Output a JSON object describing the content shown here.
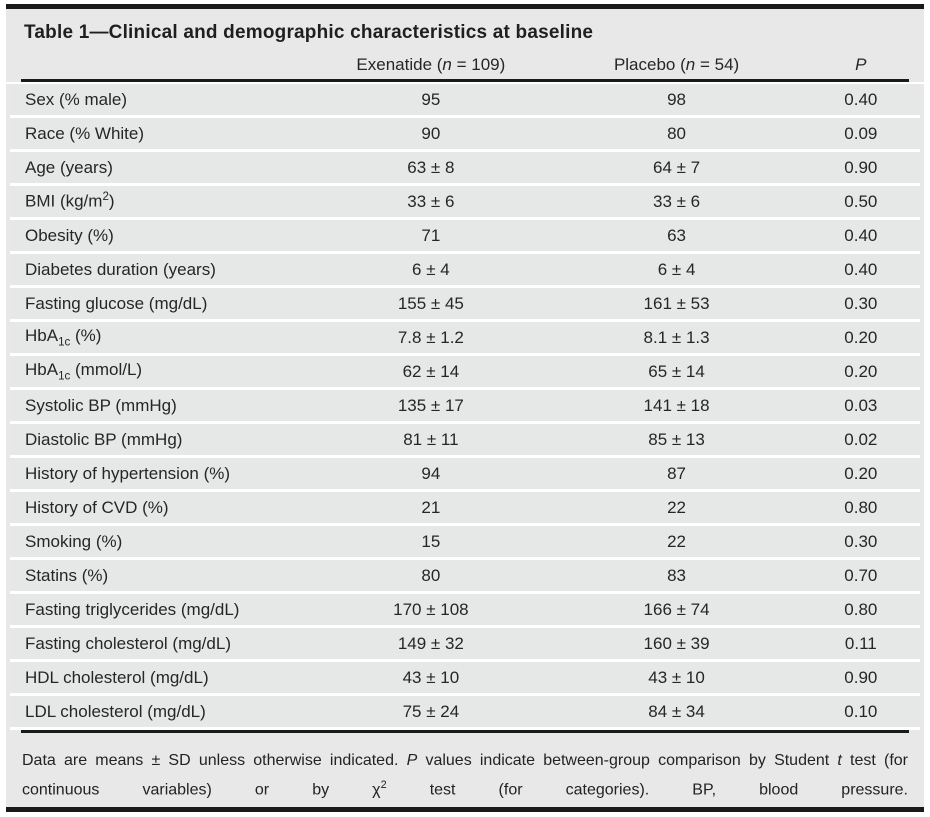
{
  "table": {
    "title": "Table 1—Clinical and demographic characteristics at baseline",
    "columns": {
      "label": "",
      "group1": [
        {
          "t": "Exenatide ("
        },
        {
          "t": "n",
          "style": "i"
        },
        {
          "t": " = 109)"
        }
      ],
      "group2": [
        {
          "t": "Placebo ("
        },
        {
          "t": "n",
          "style": "i"
        },
        {
          "t": " = 54)"
        }
      ],
      "p": [
        {
          "t": "P",
          "style": "i"
        }
      ]
    },
    "rows": [
      {
        "label": [
          {
            "t": "Sex (% male)"
          }
        ],
        "exenatide": "95",
        "placebo": "98",
        "p": "0.40"
      },
      {
        "label": [
          {
            "t": "Race (% White)"
          }
        ],
        "exenatide": "90",
        "placebo": "80",
        "p": "0.09"
      },
      {
        "label": [
          {
            "t": "Age (years)"
          }
        ],
        "exenatide": "63 ± 8",
        "placebo": "64 ± 7",
        "p": "0.90"
      },
      {
        "label": [
          {
            "t": "BMI (kg/m"
          },
          {
            "t": "2",
            "style": "sup"
          },
          {
            "t": ")"
          }
        ],
        "exenatide": "33 ± 6",
        "placebo": "33 ± 6",
        "p": "0.50"
      },
      {
        "label": [
          {
            "t": "Obesity (%)"
          }
        ],
        "exenatide": "71",
        "placebo": "63",
        "p": "0.40"
      },
      {
        "label": [
          {
            "t": "Diabetes duration (years)"
          }
        ],
        "exenatide": "6 ± 4",
        "placebo": "6 ± 4",
        "p": "0.40"
      },
      {
        "label": [
          {
            "t": "Fasting glucose (mg/dL)"
          }
        ],
        "exenatide": "155 ± 45",
        "placebo": "161 ± 53",
        "p": "0.30"
      },
      {
        "label": [
          {
            "t": "HbA"
          },
          {
            "t": "1c",
            "style": "sub"
          },
          {
            "t": " (%)"
          }
        ],
        "exenatide": "7.8 ± 1.2",
        "placebo": "8.1 ± 1.3",
        "p": "0.20"
      },
      {
        "label": [
          {
            "t": "HbA"
          },
          {
            "t": "1c",
            "style": "sub"
          },
          {
            "t": " (mmol/L)"
          }
        ],
        "exenatide": "62 ± 14",
        "placebo": "65 ± 14",
        "p": "0.20"
      },
      {
        "label": [
          {
            "t": "Systolic BP (mmHg)"
          }
        ],
        "exenatide": "135 ± 17",
        "placebo": "141 ± 18",
        "p": "0.03"
      },
      {
        "label": [
          {
            "t": "Diastolic BP (mmHg)"
          }
        ],
        "exenatide": "81 ± 11",
        "placebo": "85 ± 13",
        "p": "0.02"
      },
      {
        "label": [
          {
            "t": "History of hypertension (%)"
          }
        ],
        "exenatide": "94",
        "placebo": "87",
        "p": "0.20"
      },
      {
        "label": [
          {
            "t": "History of CVD (%)"
          }
        ],
        "exenatide": "21",
        "placebo": "22",
        "p": "0.80"
      },
      {
        "label": [
          {
            "t": "Smoking (%)"
          }
        ],
        "exenatide": "15",
        "placebo": "22",
        "p": "0.30"
      },
      {
        "label": [
          {
            "t": "Statins (%)"
          }
        ],
        "exenatide": "80",
        "placebo": "83",
        "p": "0.70"
      },
      {
        "label": [
          {
            "t": "Fasting triglycerides (mg/dL)"
          }
        ],
        "exenatide": "170 ± 108",
        "placebo": "166 ± 74",
        "p": "0.80"
      },
      {
        "label": [
          {
            "t": "Fasting cholesterol (mg/dL)"
          }
        ],
        "exenatide": "149 ± 32",
        "placebo": "160 ± 39",
        "p": "0.11"
      },
      {
        "label": [
          {
            "t": "HDL cholesterol (mg/dL)"
          }
        ],
        "exenatide": "43 ± 10",
        "placebo": "43 ± 10",
        "p": "0.90"
      },
      {
        "label": [
          {
            "t": "LDL cholesterol (mg/dL)"
          }
        ],
        "exenatide": "75 ± 24",
        "placebo": "84 ± 34",
        "p": "0.10"
      }
    ],
    "footnote": [
      {
        "t": "Data are means ± SD unless otherwise indicated. "
      },
      {
        "t": "P",
        "style": "i"
      },
      {
        "t": " values indicate between-group comparison by Student "
      },
      {
        "t": "t",
        "style": "i"
      },
      {
        "t": " test (for continuous variables) or by χ"
      },
      {
        "t": "2",
        "style": "sup"
      },
      {
        "t": " test (for categories). BP, blood pressure."
      }
    ]
  },
  "colors": {
    "panel_bg": "#e8e8e8",
    "row_bg": "#e6e7e7",
    "rule": "#1a1a1a",
    "text": "#262626"
  }
}
